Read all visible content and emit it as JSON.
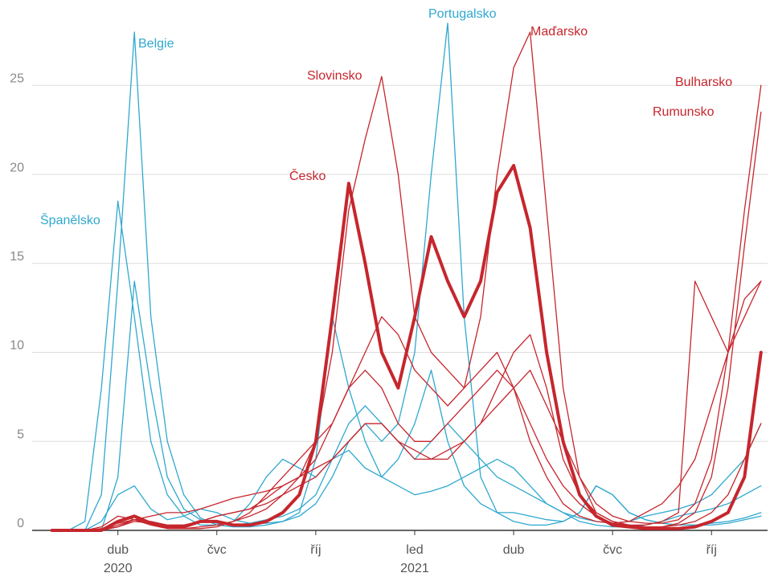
{
  "chart_data": {
    "type": "line",
    "x": [
      1,
      1.5,
      2,
      2.5,
      3,
      3.5,
      4,
      4.5,
      5,
      5.5,
      6,
      6.5,
      7,
      7.5,
      8,
      8.5,
      9,
      9.5,
      10,
      10.5,
      11,
      11.5,
      12,
      12.5,
      13,
      13.5,
      14,
      14.5,
      15,
      15.5,
      16,
      16.5,
      17,
      17.5,
      18,
      18.5,
      19,
      19.5,
      20,
      20.5,
      21,
      21.5,
      22,
      22.5
    ],
    "xlim": [
      0.4,
      22.7
    ],
    "xticks": [
      {
        "value": 3,
        "label": "dub"
      },
      {
        "value": 6,
        "label": "čvc"
      },
      {
        "value": 9,
        "label": "říj"
      },
      {
        "value": 12,
        "label": "led"
      },
      {
        "value": 15,
        "label": "dub"
      },
      {
        "value": 18,
        "label": "čvc"
      },
      {
        "value": 21,
        "label": "říj"
      }
    ],
    "year_labels": [
      {
        "value": 3,
        "label": "2020"
      },
      {
        "value": 12,
        "label": "2021"
      }
    ],
    "ylim": [
      0,
      29.8
    ],
    "yticks": [
      0,
      5,
      10,
      15,
      20,
      25
    ],
    "grid": true,
    "series": [
      {
        "color": "#2fa8cf",
        "values": [
          0,
          0,
          0,
          0,
          3,
          14,
          8,
          3,
          1.2,
          0.6,
          0.4,
          0.3,
          0.4,
          0.6,
          0.8,
          1.2,
          2,
          4,
          6,
          7,
          6,
          5,
          4,
          5,
          6,
          5,
          4,
          3,
          2.5,
          2,
          1.5,
          1,
          0.7,
          0.5,
          0.4,
          0.5,
          0.8,
          1,
          1.2,
          1.5,
          2,
          3,
          4,
          6
        ]
      },
      {
        "name": "Belgie",
        "color": "#2fa8cf",
        "values": [
          0,
          0,
          0,
          2,
          14,
          28,
          12,
          5,
          2,
          0.7,
          0.3,
          0.2,
          0.2,
          0.3,
          0.5,
          1,
          4,
          12,
          8,
          5,
          3,
          2.5,
          2,
          2.2,
          2.5,
          3,
          3.5,
          4,
          3.5,
          2.5,
          1.5,
          1,
          0.5,
          0.3,
          0.2,
          0.2,
          0.3,
          0.5,
          0.8,
          1,
          1.2,
          1.5,
          2,
          2.5
        ]
      },
      {
        "name": "Španělsko",
        "color": "#2fa8cf",
        "values": [
          0,
          0,
          0.5,
          8,
          18.5,
          12,
          5,
          2,
          0.8,
          0.3,
          0.3,
          0.5,
          1.5,
          3,
          4,
          3.5,
          3,
          4,
          4.5,
          3.5,
          3,
          4,
          6,
          9,
          5,
          2.5,
          1.5,
          1,
          1,
          0.8,
          0.6,
          0.5,
          1,
          2.5,
          2,
          1,
          0.6,
          0.4,
          0.3,
          0.3,
          0.4,
          0.5,
          0.7,
          1
        ]
      },
      {
        "name": "Portugalsko",
        "color": "#2fa8cf",
        "values": [
          0,
          0,
          0,
          0.5,
          2,
          2.5,
          1.2,
          0.6,
          0.8,
          1.2,
          1,
          0.6,
          0.4,
          0.4,
          0.5,
          0.8,
          1.5,
          3,
          5,
          6,
          5,
          6,
          10,
          20,
          28.5,
          12,
          3,
          1,
          0.5,
          0.3,
          0.3,
          0.5,
          1,
          2.5,
          2,
          1,
          0.6,
          0.4,
          0.3,
          0.3,
          0.3,
          0.4,
          0.6,
          0.8
        ]
      },
      {
        "color": "#c6262d",
        "values": [
          0,
          0,
          0,
          0,
          0.3,
          0.6,
          0.5,
          0.3,
          0.3,
          0.5,
          0.8,
          1,
          1.2,
          1.8,
          2.5,
          3,
          4,
          6,
          8,
          9,
          8,
          6,
          5,
          5,
          6,
          7,
          8,
          9,
          8,
          6,
          4,
          2.5,
          1.5,
          0.8,
          0.4,
          0.3,
          0.3,
          0.5,
          1,
          14,
          12,
          10,
          13,
          14
        ]
      },
      {
        "name": "Slovinsko",
        "color": "#c6262d",
        "values": [
          0,
          0,
          0,
          0.2,
          0.8,
          0.6,
          0.3,
          0.1,
          0.1,
          0.2,
          0.3,
          0.5,
          0.8,
          1.2,
          2,
          3,
          5,
          10,
          18,
          22,
          25.5,
          20,
          12,
          10,
          9,
          8,
          9,
          10,
          8,
          5,
          3,
          1.5,
          0.8,
          0.5,
          0.4,
          0.5,
          1,
          1.5,
          2.5,
          4,
          7,
          10,
          12,
          14
        ]
      },
      {
        "name": "Maďarsko",
        "color": "#c6262d",
        "values": [
          0,
          0,
          0,
          0.1,
          0.4,
          0.6,
          0.4,
          0.2,
          0.1,
          0.1,
          0.2,
          0.5,
          1,
          2,
          3,
          4,
          5,
          6,
          8,
          10,
          12,
          11,
          9,
          8,
          7,
          8,
          12,
          20,
          26,
          28,
          18,
          8,
          3,
          1,
          0.5,
          0.3,
          0.2,
          0.2,
          0.3,
          0.5,
          1,
          2,
          4,
          6
        ]
      },
      {
        "name": "Bulharsko",
        "color": "#c6262d",
        "values": [
          0,
          0,
          0,
          0,
          0.2,
          0.5,
          0.4,
          0.3,
          0.3,
          0.5,
          0.8,
          1,
          1.2,
          1.5,
          2,
          2.5,
          3,
          4,
          5,
          6,
          6,
          5,
          4,
          4,
          4.5,
          5,
          6,
          7,
          8,
          9,
          7,
          5,
          3,
          1.5,
          0.8,
          0.5,
          0.4,
          0.4,
          0.6,
          1.5,
          4,
          10,
          18,
          25
        ]
      },
      {
        "name": "Rumunsko",
        "color": "#c6262d",
        "values": [
          0,
          0,
          0,
          0,
          0.2,
          0.6,
          0.8,
          1,
          1,
          1.2,
          1.5,
          1.8,
          2,
          2.2,
          2.5,
          3,
          3.5,
          4,
          5,
          6,
          6,
          5,
          4.5,
          4,
          4,
          5,
          6,
          8,
          10,
          11,
          8,
          4,
          2,
          1,
          0.5,
          0.3,
          0.2,
          0.2,
          0.4,
          1,
          3,
          8,
          16,
          23.5
        ]
      },
      {
        "name": "Česko",
        "color": "#c6262d",
        "line_width": 4,
        "values": [
          0,
          0,
          0,
          0,
          0.5,
          0.8,
          0.4,
          0.2,
          0.2,
          0.5,
          0.5,
          0.3,
          0.3,
          0.5,
          1,
          2,
          5,
          12,
          19.5,
          15,
          10,
          8,
          12,
          16.5,
          14,
          12,
          14,
          19,
          20.5,
          17,
          10,
          5,
          2,
          0.8,
          0.3,
          0.2,
          0.1,
          0.1,
          0.1,
          0.2,
          0.5,
          1,
          3,
          10
        ]
      }
    ]
  }
}
